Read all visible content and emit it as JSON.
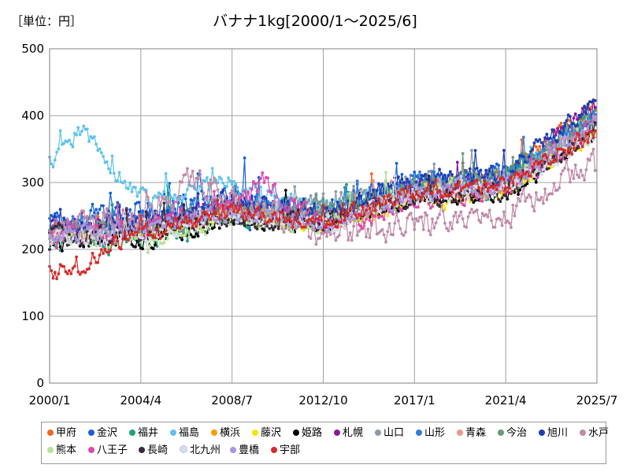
{
  "chart_data": {
    "type": "line",
    "unit_label": "［単位：円］",
    "title": "バナナ1kg[2000/1～2025/6]",
    "x_ticks": [
      "2000/1",
      "2004/4",
      "2008/7",
      "2012/10",
      "2017/1",
      "2021/4",
      "2025/7"
    ],
    "y_ticks": [
      0,
      100,
      200,
      300,
      400,
      500
    ],
    "ylim": [
      0,
      500
    ],
    "xlim": [
      "2000/1",
      "2025/7"
    ],
    "grid": true,
    "legend_position": "bottom",
    "series": [
      {
        "name": "甲府",
        "color": "#f26522",
        "profile": [
          [
            2000.0,
            225
          ],
          [
            2004.3,
            235
          ],
          [
            2008.5,
            260
          ],
          [
            2012.8,
            245
          ],
          [
            2017.0,
            290
          ],
          [
            2021.3,
            315
          ],
          [
            2025.5,
            410
          ]
        ],
        "amp": 24
      },
      {
        "name": "金沢",
        "color": "#1a5fd6",
        "profile": [
          [
            2000.0,
            240
          ],
          [
            2004.3,
            255
          ],
          [
            2008.5,
            275
          ],
          [
            2012.8,
            255
          ],
          [
            2017.0,
            300
          ],
          [
            2021.3,
            305
          ],
          [
            2025.5,
            405
          ]
        ],
        "amp": 30
      },
      {
        "name": "福井",
        "color": "#1aa37a",
        "profile": [
          [
            2000.0,
            215
          ],
          [
            2004.3,
            220
          ],
          [
            2008.5,
            255
          ],
          [
            2012.8,
            245
          ],
          [
            2017.0,
            290
          ],
          [
            2021.3,
            300
          ],
          [
            2025.5,
            400
          ]
        ],
        "amp": 30
      },
      {
        "name": "福島",
        "color": "#5ec3ec",
        "profile": [
          [
            2000.0,
            330
          ],
          [
            2001.5,
            380
          ],
          [
            2003.0,
            320
          ],
          [
            2004.3,
            280
          ],
          [
            2008.5,
            300
          ],
          [
            2012.8,
            255
          ],
          [
            2017.0,
            295
          ],
          [
            2021.3,
            300
          ],
          [
            2025.5,
            395
          ]
        ],
        "amp": 22
      },
      {
        "name": "横浜",
        "color": "#f0a000",
        "profile": [
          [
            2000.0,
            220
          ],
          [
            2004.3,
            230
          ],
          [
            2008.5,
            255
          ],
          [
            2012.8,
            235
          ],
          [
            2017.0,
            280
          ],
          [
            2021.3,
            290
          ],
          [
            2025.5,
            380
          ]
        ],
        "amp": 14
      },
      {
        "name": "藤沢",
        "color": "#f5e400",
        "profile": [
          [
            2000.0,
            215
          ],
          [
            2004.3,
            225
          ],
          [
            2008.5,
            250
          ],
          [
            2012.8,
            230
          ],
          [
            2017.0,
            270
          ],
          [
            2021.3,
            285
          ],
          [
            2025.5,
            375
          ]
        ],
        "amp": 14
      },
      {
        "name": "姫路",
        "color": "#000000",
        "profile": [
          [
            2000.0,
            210
          ],
          [
            2004.3,
            215
          ],
          [
            2008.5,
            245
          ],
          [
            2012.8,
            240
          ],
          [
            2017.0,
            275
          ],
          [
            2021.3,
            285
          ],
          [
            2025.5,
            370
          ]
        ],
        "amp": 20
      },
      {
        "name": "札幌",
        "color": "#8b1a9a",
        "profile": [
          [
            2000.0,
            225
          ],
          [
            2004.3,
            240
          ],
          [
            2008.5,
            265
          ],
          [
            2012.8,
            250
          ],
          [
            2017.0,
            295
          ],
          [
            2021.3,
            305
          ],
          [
            2025.5,
            420
          ]
        ],
        "amp": 20
      },
      {
        "name": "山口",
        "color": "#8e9aa8",
        "profile": [
          [
            2000.0,
            230
          ],
          [
            2004.3,
            240
          ],
          [
            2008.5,
            260
          ],
          [
            2012.8,
            270
          ],
          [
            2017.0,
            300
          ],
          [
            2021.3,
            300
          ],
          [
            2025.5,
            390
          ]
        ],
        "amp": 24
      },
      {
        "name": "山形",
        "color": "#2e7de0",
        "profile": [
          [
            2000.0,
            235
          ],
          [
            2004.3,
            245
          ],
          [
            2008.5,
            270
          ],
          [
            2012.8,
            250
          ],
          [
            2017.0,
            305
          ],
          [
            2021.3,
            305
          ],
          [
            2025.5,
            400
          ]
        ],
        "amp": 24
      },
      {
        "name": "青森",
        "color": "#e99a8a",
        "profile": [
          [
            2000.0,
            225
          ],
          [
            2004.3,
            235
          ],
          [
            2008.5,
            260
          ],
          [
            2012.8,
            245
          ],
          [
            2017.0,
            290
          ],
          [
            2021.3,
            300
          ],
          [
            2025.5,
            390
          ]
        ],
        "amp": 22
      },
      {
        "name": "今治",
        "color": "#6a9a7a",
        "profile": [
          [
            2000.0,
            220
          ],
          [
            2004.3,
            230
          ],
          [
            2008.5,
            255
          ],
          [
            2012.8,
            250
          ],
          [
            2017.0,
            290
          ],
          [
            2021.3,
            310
          ],
          [
            2025.5,
            395
          ]
        ],
        "amp": 26
      },
      {
        "name": "旭川",
        "color": "#1c3fb0",
        "profile": [
          [
            2000.0,
            230
          ],
          [
            2004.3,
            240
          ],
          [
            2008.5,
            270
          ],
          [
            2012.8,
            255
          ],
          [
            2017.0,
            300
          ],
          [
            2021.3,
            310
          ],
          [
            2025.5,
            420
          ]
        ],
        "amp": 24
      },
      {
        "name": "水戸",
        "color": "#c08aa8",
        "profile": [
          [
            2000.0,
            225
          ],
          [
            2004.3,
            250
          ],
          [
            2006.5,
            300
          ],
          [
            2008.5,
            280
          ],
          [
            2012.8,
            215
          ],
          [
            2017.0,
            240
          ],
          [
            2021.3,
            255
          ],
          [
            2025.5,
            340
          ]
        ],
        "amp": 34
      },
      {
        "name": "熊本",
        "color": "#b6e39a",
        "profile": [
          [
            2000.0,
            215
          ],
          [
            2004.3,
            215
          ],
          [
            2008.5,
            245
          ],
          [
            2012.8,
            240
          ],
          [
            2017.0,
            285
          ],
          [
            2021.3,
            295
          ],
          [
            2025.5,
            380
          ]
        ],
        "amp": 22
      },
      {
        "name": "八王子",
        "color": "#e04aa8",
        "profile": [
          [
            2000.0,
            220
          ],
          [
            2004.3,
            230
          ],
          [
            2008.5,
            265
          ],
          [
            2010.0,
            300
          ],
          [
            2012.8,
            230
          ],
          [
            2017.0,
            275
          ],
          [
            2021.3,
            290
          ],
          [
            2025.5,
            385
          ]
        ],
        "amp": 24
      },
      {
        "name": "長崎",
        "color": "#3a2a3a",
        "profile": [
          [
            2000.0,
            220
          ],
          [
            2004.3,
            225
          ],
          [
            2008.5,
            250
          ],
          [
            2012.8,
            240
          ],
          [
            2017.0,
            280
          ],
          [
            2021.3,
            290
          ],
          [
            2025.5,
            380
          ]
        ],
        "amp": 22
      },
      {
        "name": "北九州",
        "color": "#d8dcf0",
        "profile": [
          [
            2000.0,
            215
          ],
          [
            2004.3,
            225
          ],
          [
            2008.5,
            250
          ],
          [
            2012.8,
            235
          ],
          [
            2017.0,
            280
          ],
          [
            2021.3,
            290
          ],
          [
            2025.5,
            375
          ]
        ],
        "amp": 18
      },
      {
        "name": "豊橋",
        "color": "#a896e0",
        "profile": [
          [
            2000.0,
            220
          ],
          [
            2004.3,
            230
          ],
          [
            2008.5,
            255
          ],
          [
            2012.8,
            240
          ],
          [
            2017.0,
            285
          ],
          [
            2021.3,
            295
          ],
          [
            2025.5,
            390
          ]
        ],
        "amp": 20
      },
      {
        "name": "宇部",
        "color": "#d62a2a",
        "profile": [
          [
            2000.0,
            165
          ],
          [
            2001.5,
            175
          ],
          [
            2002.5,
            200
          ],
          [
            2004.3,
            225
          ],
          [
            2008.5,
            255
          ],
          [
            2012.8,
            240
          ],
          [
            2017.0,
            285
          ],
          [
            2021.3,
            295
          ],
          [
            2025.5,
            380
          ]
        ],
        "amp": 20
      }
    ]
  }
}
